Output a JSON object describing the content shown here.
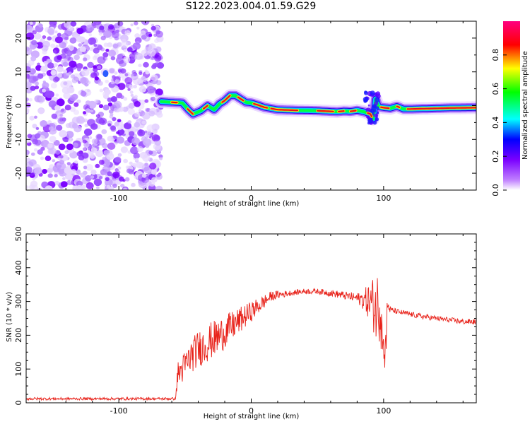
{
  "title": "S122.2023.004.01.59.G29",
  "chart_data": [
    {
      "type": "heatmap",
      "title": "S122.2023.004.01.59.G29",
      "xlabel": "Height of straight line (km)",
      "ylabel": "Frequency (Hz)",
      "xlim": [
        -170,
        170
      ],
      "ylim": [
        -25,
        25
      ],
      "xticks": [
        "-100",
        "0",
        "100"
      ],
      "yticks": [
        "-20",
        "-10",
        "0",
        "10",
        "20"
      ],
      "noise_region_x": [
        -170,
        -68
      ],
      "ridge": {
        "x": [
          -68,
          -60,
          -52,
          -48,
          -44,
          -38,
          -33,
          -28,
          -24,
          -20,
          -16,
          -12,
          -8,
          -4,
          0,
          5,
          10,
          20,
          35,
          50,
          60,
          65,
          70,
          75,
          80,
          85,
          88,
          90,
          91,
          92,
          93,
          94,
          96,
          100,
          105,
          110,
          115,
          120,
          130,
          150,
          170
        ],
        "y": [
          1.2,
          1.0,
          0.8,
          -1.0,
          -2.5,
          -1.5,
          0.0,
          -1.2,
          0.5,
          1.5,
          3.0,
          3.0,
          2.0,
          1.0,
          0.8,
          0.2,
          -0.5,
          -1.2,
          -1.4,
          -1.5,
          -1.7,
          -1.8,
          -1.6,
          -1.7,
          -1.4,
          -1.8,
          -2.2,
          -2.5,
          -3.2,
          -4.0,
          -1.5,
          2.0,
          -0.3,
          -0.6,
          -0.8,
          -0.2,
          -1.0,
          -1.0,
          -0.9,
          -0.7,
          -0.6
        ]
      },
      "colorbar": {
        "label": "Normalized spectral amplitude",
        "range": [
          0.0,
          1.0
        ],
        "ticks": [
          "0.0",
          "0.2",
          "0.4",
          "0.6",
          "0.8"
        ],
        "colors": [
          "#ffffff",
          "#7a00ff",
          "#0000ff",
          "#00ffff",
          "#00ff00",
          "#ffff00",
          "#ff0000",
          "#ff0080"
        ]
      },
      "grid": false
    },
    {
      "type": "line",
      "xlabel": "Height of straight line (km)",
      "ylabel": "SNR (10 * v/v)",
      "xlim": [
        -170,
        170
      ],
      "ylim": [
        0,
        500
      ],
      "xticks": [
        "-100",
        "0",
        "100"
      ],
      "yticks": [
        "0",
        "100",
        "200",
        "300",
        "400",
        "500"
      ],
      "series": [
        {
          "color": "#e8231b",
          "x": [
            -170,
            -140,
            -110,
            -80,
            -57,
            -56,
            -50,
            -45,
            -40,
            -35,
            -30,
            -25,
            -20,
            -15,
            -10,
            -5,
            0,
            5,
            10,
            15,
            20,
            25,
            30,
            40,
            50,
            60,
            70,
            80,
            85,
            90,
            93,
            95,
            97,
            99,
            101,
            103,
            105,
            110,
            120,
            130,
            140,
            150,
            160,
            170
          ],
          "y": [
            12,
            12,
            12,
            12,
            12,
            80,
            110,
            140,
            160,
            170,
            185,
            195,
            210,
            225,
            240,
            255,
            270,
            285,
            300,
            315,
            320,
            322,
            325,
            330,
            330,
            325,
            318,
            310,
            305,
            300,
            290,
            280,
            300,
            270,
            200,
            290,
            275,
            270,
            262,
            255,
            250,
            245,
            240,
            240
          ],
          "noise": [
            4,
            4,
            4,
            4,
            4,
            40,
            45,
            50,
            55,
            55,
            55,
            55,
            50,
            45,
            40,
            35,
            30,
            25,
            20,
            15,
            12,
            10,
            8,
            8,
            8,
            10,
            12,
            15,
            30,
            60,
            90,
            110,
            120,
            130,
            90,
            20,
            10,
            8,
            8,
            8,
            8,
            8,
            8,
            8
          ]
        }
      ],
      "grid": false
    }
  ]
}
